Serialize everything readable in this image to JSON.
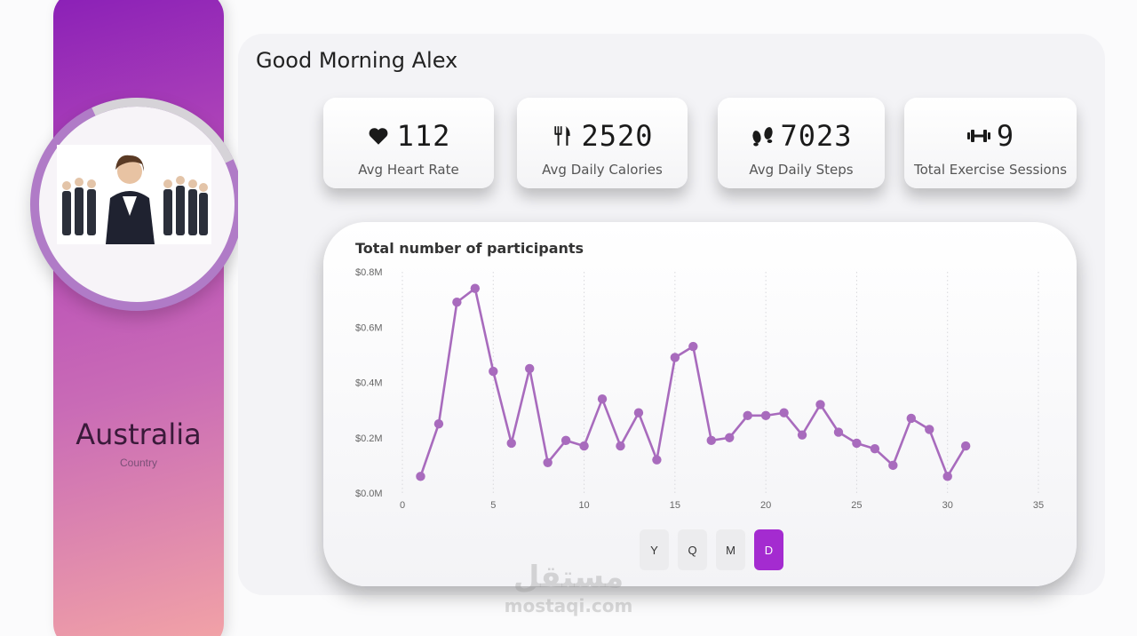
{
  "greeting": "Good Morning Alex",
  "profile": {
    "country": "Australia",
    "country_label": "Country"
  },
  "kpis": [
    {
      "icon": "heart-icon",
      "value": "112",
      "label": "Avg Heart Rate"
    },
    {
      "icon": "utensils-icon",
      "value": "2520",
      "label": "Avg Daily Calories"
    },
    {
      "icon": "footprints-icon",
      "value": "7023",
      "label": "Avg Daily Steps"
    },
    {
      "icon": "dumbbell-icon",
      "value": "9",
      "label": "Total Exercise Sessions"
    }
  ],
  "period_buttons": [
    {
      "label": "Y",
      "active": false
    },
    {
      "label": "Q",
      "active": false
    },
    {
      "label": "M",
      "active": false
    },
    {
      "label": "D",
      "active": true
    }
  ],
  "colors": {
    "accent": "#a42bd0",
    "line": "#a86bbd",
    "sidebar_top": "#8a1fb7",
    "sidebar_bottom": "#f3a4a6"
  },
  "watermark": {
    "arabic": "مستقل",
    "domain": "mostaqi.com"
  },
  "chart_data": {
    "type": "line",
    "title": "Total number of participants",
    "xlabel": "",
    "ylabel": "",
    "xlim": [
      0,
      35
    ],
    "ylim": [
      0,
      0.8
    ],
    "x_ticks": [
      0,
      5,
      10,
      15,
      20,
      25,
      30,
      35
    ],
    "y_ticks": [
      "$0.0M",
      "$0.2M",
      "$0.4M",
      "$0.6M",
      "$0.8M"
    ],
    "y_tick_values": [
      0,
      0.2,
      0.4,
      0.6,
      0.8
    ],
    "grid": "vertical dotted",
    "series": [
      {
        "x": [
          1,
          2,
          3,
          4,
          5,
          6,
          7,
          8,
          9,
          10,
          11,
          12,
          13,
          14,
          15,
          16,
          17,
          18,
          19,
          20,
          21,
          22,
          23,
          24,
          25,
          26,
          27,
          28,
          29,
          30,
          31
        ],
        "values": [
          0.06,
          0.25,
          0.69,
          0.74,
          0.44,
          0.18,
          0.45,
          0.11,
          0.19,
          0.17,
          0.34,
          0.17,
          0.29,
          0.12,
          0.49,
          0.53,
          0.19,
          0.2,
          0.28,
          0.28,
          0.29,
          0.21,
          0.32,
          0.22,
          0.18,
          0.16,
          0.1,
          0.27,
          0.23,
          0.06,
          0.17
        ]
      }
    ]
  }
}
